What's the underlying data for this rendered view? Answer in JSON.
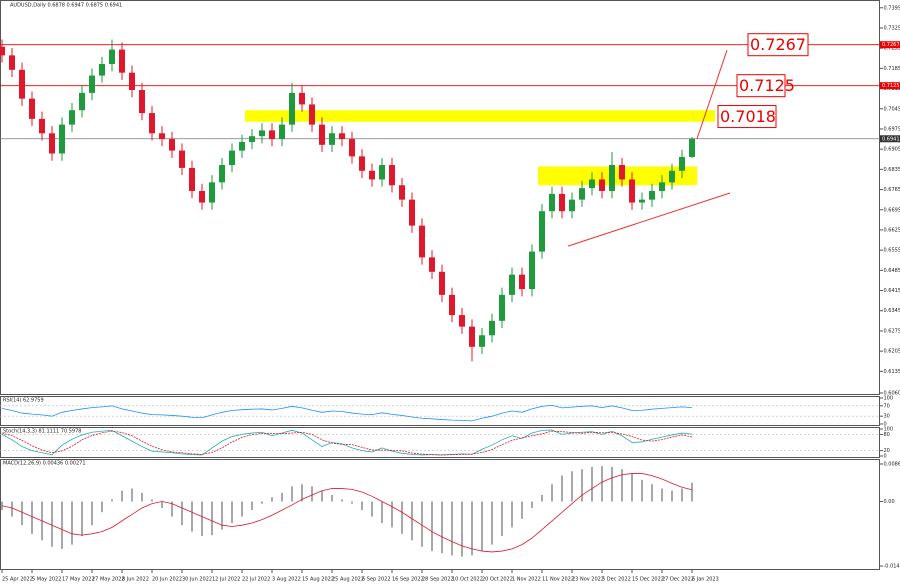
{
  "chart_data": {
    "type": "candlestick",
    "title": "AUDUSD,Daily  0.6878 0.6947 0.6875 0.6941",
    "bull_color": "#1f9a3c",
    "bear_color": "#e0182d",
    "categories": [
      "25 Apr 2022",
      null,
      null,
      "5 May 2022",
      null,
      null,
      "17 May 2022",
      null,
      null,
      "27 May 2022",
      null,
      null,
      "8 Jun 2022",
      null,
      null,
      "20 Jun 2022",
      null,
      null,
      "30 Jun 2022",
      null,
      null,
      "12 Jul 2022",
      null,
      null,
      "22 Jul 2022",
      null,
      null,
      "3 Aug 2022",
      null,
      null,
      "15 Aug 2022",
      null,
      null,
      "25 Aug 2022",
      null,
      null,
      "6 Sep 2022",
      null,
      null,
      "16 Sep 2022",
      null,
      null,
      "28 Sep 2022",
      null,
      null,
      "10 Oct 2022",
      null,
      null,
      "20 Oct 2022",
      null,
      null,
      "1 Nov 2022",
      null,
      null,
      "11 Nov 2022",
      null,
      null,
      "23 Nov 2022",
      null,
      null,
      "5 Dec 2022",
      null,
      null,
      "15 Dec 2022",
      null,
      null,
      "27 Dec 2022",
      null,
      null,
      "6 Jan 2023"
    ],
    "open": [
      0.726,
      0.723,
      0.718,
      0.708,
      0.701,
      0.696,
      0.689,
      0.699,
      0.704,
      0.71,
      0.716,
      0.72,
      0.725,
      0.717,
      0.711,
      0.703,
      0.696,
      0.694,
      0.69,
      0.684,
      0.676,
      0.672,
      0.679,
      0.685,
      0.69,
      0.693,
      0.695,
      0.697,
      0.694,
      0.699,
      0.71,
      0.706,
      0.699,
      0.692,
      0.696,
      0.694,
      0.688,
      0.683,
      0.68,
      0.685,
      0.678,
      0.673,
      0.664,
      0.653,
      0.648,
      0.64,
      0.633,
      0.629,
      0.622,
      0.626,
      0.631,
      0.64,
      0.647,
      0.642,
      0.655,
      0.669,
      0.675,
      0.669,
      0.673,
      0.677,
      0.68,
      0.676,
      0.685,
      0.68,
      0.672,
      0.673,
      0.676,
      0.679,
      0.683,
      0.6878
    ],
    "high": [
      0.7285,
      0.7255,
      0.7205,
      0.7105,
      0.7035,
      0.6985,
      0.7015,
      0.7065,
      0.7125,
      0.7185,
      0.7225,
      0.7285,
      0.7275,
      0.7195,
      0.7135,
      0.7055,
      0.6985,
      0.6965,
      0.6925,
      0.6865,
      0.6785,
      0.6815,
      0.6875,
      0.6925,
      0.6955,
      0.6975,
      0.6995,
      0.6995,
      0.7015,
      0.7135,
      0.7125,
      0.7085,
      0.7015,
      0.6985,
      0.6985,
      0.6965,
      0.6905,
      0.6855,
      0.6875,
      0.6875,
      0.6805,
      0.6755,
      0.6665,
      0.6555,
      0.6505,
      0.6425,
      0.6355,
      0.6315,
      0.6285,
      0.6335,
      0.6425,
      0.6495,
      0.6495,
      0.6575,
      0.6715,
      0.6775,
      0.6775,
      0.6755,
      0.6795,
      0.6825,
      0.6825,
      0.6895,
      0.6875,
      0.6825,
      0.6755,
      0.6785,
      0.6815,
      0.6855,
      0.6903,
      0.6947
    ],
    "low": [
      0.7205,
      0.7155,
      0.7055,
      0.6985,
      0.6935,
      0.6865,
      0.6865,
      0.6965,
      0.7015,
      0.7075,
      0.7135,
      0.7175,
      0.7145,
      0.7085,
      0.7005,
      0.6935,
      0.6915,
      0.6875,
      0.6815,
      0.6735,
      0.6695,
      0.6695,
      0.6765,
      0.6825,
      0.6875,
      0.6905,
      0.6925,
      0.6915,
      0.6915,
      0.6965,
      0.7035,
      0.6965,
      0.6895,
      0.6895,
      0.6915,
      0.6855,
      0.6805,
      0.6775,
      0.6775,
      0.6755,
      0.6705,
      0.6615,
      0.6505,
      0.6455,
      0.6375,
      0.6305,
      0.6265,
      0.617,
      0.6195,
      0.6235,
      0.6285,
      0.6375,
      0.6395,
      0.6395,
      0.6525,
      0.6665,
      0.6665,
      0.6665,
      0.6705,
      0.6745,
      0.6735,
      0.6735,
      0.6775,
      0.6695,
      0.6695,
      0.6705,
      0.6735,
      0.6765,
      0.6805,
      0.6875
    ],
    "close": [
      0.723,
      0.718,
      0.708,
      0.701,
      0.696,
      0.689,
      0.699,
      0.704,
      0.71,
      0.716,
      0.72,
      0.725,
      0.717,
      0.711,
      0.703,
      0.696,
      0.694,
      0.69,
      0.684,
      0.676,
      0.672,
      0.679,
      0.685,
      0.69,
      0.693,
      0.695,
      0.697,
      0.694,
      0.699,
      0.71,
      0.706,
      0.699,
      0.692,
      0.696,
      0.694,
      0.688,
      0.683,
      0.68,
      0.685,
      0.678,
      0.673,
      0.664,
      0.653,
      0.648,
      0.64,
      0.633,
      0.629,
      0.622,
      0.626,
      0.631,
      0.64,
      0.647,
      0.642,
      0.655,
      0.669,
      0.675,
      0.669,
      0.673,
      0.677,
      0.68,
      0.676,
      0.685,
      0.68,
      0.672,
      0.673,
      0.676,
      0.679,
      0.683,
      0.6878,
      0.6941
    ],
    "ylim": [
      0.6053,
      0.7415
    ],
    "yticks": [
      0.7395,
      0.7325,
      0.7255,
      0.7185,
      0.7115,
      0.7045,
      0.6975,
      0.6905,
      0.6835,
      0.6765,
      0.6695,
      0.6625,
      0.6555,
      0.6485,
      0.6415,
      0.6345,
      0.6275,
      0.6205,
      0.6135,
      {
        "value": 0.606,
        "label": "0.6060"
      }
    ],
    "levels": [
      {
        "value": 0.7267,
        "color": "#e00"
      },
      {
        "value": 0.7125,
        "color": "#e00"
      }
    ],
    "annotations": [
      0.7267,
      0.7125,
      0.7018
    ],
    "zones": [
      {
        "ylow": 0.7,
        "yhigh": 0.704,
        "color": "#ffff00"
      },
      {
        "ylow": 0.678,
        "yhigh": 0.6845,
        "color": "#ffff00"
      }
    ],
    "trendlines": [
      {
        "y": [
          0.6569,
          0.6753
        ],
        "color": "#e33"
      },
      {
        "y": [
          0.6941,
          0.7248
        ],
        "color": "#e33"
      }
    ],
    "indicators": {
      "rsi": {
        "title": "RSI(14) 62.9759",
        "ylim": [
          0,
          100
        ],
        "yticks": [
          0,
          30,
          70,
          100
        ],
        "color": "#1e90ff",
        "values": [
          60,
          52,
          42,
          38,
          35,
          30,
          45,
          52,
          58,
          63,
          66,
          70,
          58,
          50,
          42,
          36,
          35,
          33,
          30,
          26,
          24,
          35,
          45,
          52,
          55,
          57,
          58,
          54,
          60,
          68,
          62,
          53,
          45,
          50,
          48,
          42,
          38,
          36,
          43,
          37,
          33,
          27,
          22,
          20,
          17,
          15,
          14,
          12,
          22,
          30,
          42,
          50,
          45,
          58,
          68,
          72,
          62,
          65,
          68,
          70,
          63,
          70,
          62,
          52,
          53,
          57,
          60,
          63,
          66,
          62.9759
        ]
      },
      "stoch": {
        "title": "Stoch(14,3,3) 81.1111 70.5978",
        "ylim": [
          0,
          100
        ],
        "yticks": [
          0,
          20,
          80,
          100
        ],
        "main_color": "#20b2aa",
        "signal_color": "#e0182d",
        "main": [
          80,
          60,
          35,
          20,
          12,
          5,
          40,
          62,
          78,
          88,
          92,
          95,
          75,
          55,
          35,
          18,
          15,
          12,
          8,
          5,
          4,
          30,
          55,
          72,
          80,
          85,
          88,
          75,
          85,
          95,
          85,
          60,
          35,
          50,
          45,
          30,
          20,
          15,
          30,
          18,
          10,
          6,
          4,
          5,
          4,
          6,
          8,
          6,
          25,
          40,
          60,
          75,
          65,
          85,
          95,
          96,
          80,
          85,
          88,
          90,
          80,
          92,
          75,
          50,
          52,
          62,
          70,
          78,
          85,
          81.1111
        ],
        "signal": [
          85,
          75,
          58,
          38,
          22,
          12,
          19,
          36,
          60,
          76,
          86,
          92,
          87,
          75,
          55,
          36,
          23,
          15,
          12,
          8,
          6,
          13,
          30,
          52,
          69,
          79,
          84,
          83,
          83,
          85,
          88,
          80,
          60,
          48,
          43,
          42,
          32,
          22,
          22,
          21,
          19,
          11,
          7,
          5,
          4,
          5,
          6,
          7,
          13,
          24,
          42,
          58,
          67,
          75,
          82,
          92,
          90,
          87,
          84,
          88,
          86,
          87,
          82,
          72,
          59,
          55,
          61,
          70,
          78,
          70.5978
        ]
      },
      "macd": {
        "title": "MACD(12,26,9) 0.00436 0.00271",
        "ylim": [
          -0.01496,
          0.00869
        ],
        "yticks": [
          0.00869,
          {
            "value": 0,
            "label": "0.00"
          },
          -0.01496
        ],
        "main_color": "#a8a8a8",
        "signal_color": "#e0182d",
        "main": [
          -0.002,
          -0.0035,
          -0.0055,
          -0.0075,
          -0.009,
          -0.0105,
          -0.011,
          -0.01,
          -0.008,
          -0.0055,
          -0.0025,
          0.0005,
          0.0025,
          0.003,
          0.002,
          0.0005,
          -0.0015,
          -0.0035,
          -0.0055,
          -0.007,
          -0.008,
          -0.0078,
          -0.0065,
          -0.005,
          -0.0035,
          -0.002,
          -0.0005,
          0.001,
          0.002,
          0.0035,
          0.004,
          0.0035,
          0.0025,
          0.0015,
          0.0005,
          -0.0005,
          -0.002,
          -0.0035,
          -0.005,
          -0.006,
          -0.0075,
          -0.009,
          -0.0105,
          -0.0115,
          -0.012,
          -0.0125,
          -0.0128,
          -0.0125,
          -0.0115,
          -0.01,
          -0.008,
          -0.006,
          -0.004,
          -0.0015,
          0.0015,
          0.004,
          0.006,
          0.007,
          0.0075,
          0.008,
          0.0082,
          0.008,
          0.0075,
          0.0065,
          0.005,
          0.004,
          0.003,
          0.0025,
          0.003,
          0.00436
        ],
        "signal": [
          -0.001,
          -0.0015,
          -0.0025,
          -0.0035,
          -0.0045,
          -0.0055,
          -0.0065,
          -0.0075,
          -0.0078,
          -0.0075,
          -0.007,
          -0.006,
          -0.0045,
          -0.003,
          -0.0015,
          -0.0005,
          0,
          -0.0005,
          -0.0015,
          -0.0025,
          -0.0035,
          -0.0045,
          -0.0055,
          -0.0058,
          -0.0055,
          -0.005,
          -0.0042,
          -0.0032,
          -0.002,
          -0.0008,
          0.0005,
          0.0015,
          0.0025,
          0.003,
          0.003,
          0.0028,
          0.0022,
          0.0012,
          0,
          -0.0012,
          -0.0025,
          -0.004,
          -0.0055,
          -0.007,
          -0.0082,
          -0.0093,
          -0.0103,
          -0.011,
          -0.0115,
          -0.0117,
          -0.0115,
          -0.011,
          -0.01,
          -0.0085,
          -0.0065,
          -0.0045,
          -0.0025,
          -0.0005,
          0.0015,
          0.003,
          0.0045,
          0.0055,
          0.0062,
          0.0065,
          0.0065,
          0.006,
          0.0052,
          0.0042,
          0.0033,
          0.00271
        ]
      }
    }
  }
}
